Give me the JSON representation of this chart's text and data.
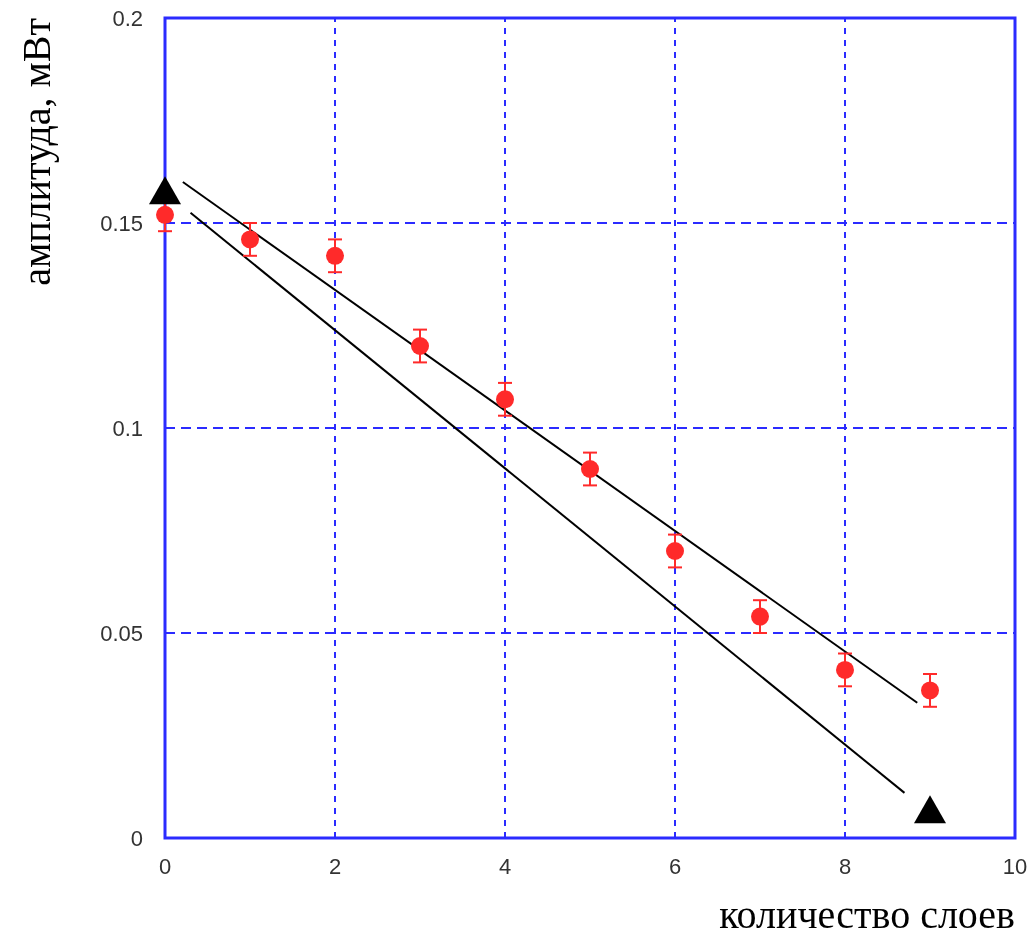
{
  "chart_data": {
    "type": "scatter",
    "xlabel": "количество слоев",
    "ylabel": "амплитуда, мВт",
    "xlim": [
      0,
      10
    ],
    "xticks": [
      0,
      2,
      4,
      6,
      8,
      10
    ],
    "ylim": [
      0,
      0.2
    ],
    "yticks": [
      0,
      0.05,
      0.1,
      0.15,
      0.2
    ],
    "grid": true,
    "series": [
      {
        "color": "#ff2a2a",
        "marker": "circle",
        "x": [
          0,
          1,
          2,
          3,
          4,
          5,
          6,
          7,
          8,
          9
        ],
        "values": [
          0.152,
          0.146,
          0.142,
          0.12,
          0.107,
          0.09,
          0.07,
          0.054,
          0.041,
          0.036
        ],
        "errors": [
          0.004,
          0.004,
          0.004,
          0.004,
          0.004,
          0.004,
          0.004,
          0.004,
          0.004,
          0.004
        ]
      },
      {
        "type": "line",
        "color": "#000000",
        "marker": "none",
        "line_style": "solid",
        "x": [
          0.21,
          8.85
        ],
        "values": [
          0.16,
          0.033
        ]
      },
      {
        "type": "line",
        "color": "#000000",
        "marker": "none",
        "line_style": "solid",
        "x": [
          0.3,
          8.7
        ],
        "values": [
          0.1525,
          0.011
        ]
      },
      {
        "color": "#000000",
        "marker": "triangle",
        "x": [
          0,
          9
        ],
        "values": [
          0.158,
          0.007
        ]
      }
    ]
  }
}
